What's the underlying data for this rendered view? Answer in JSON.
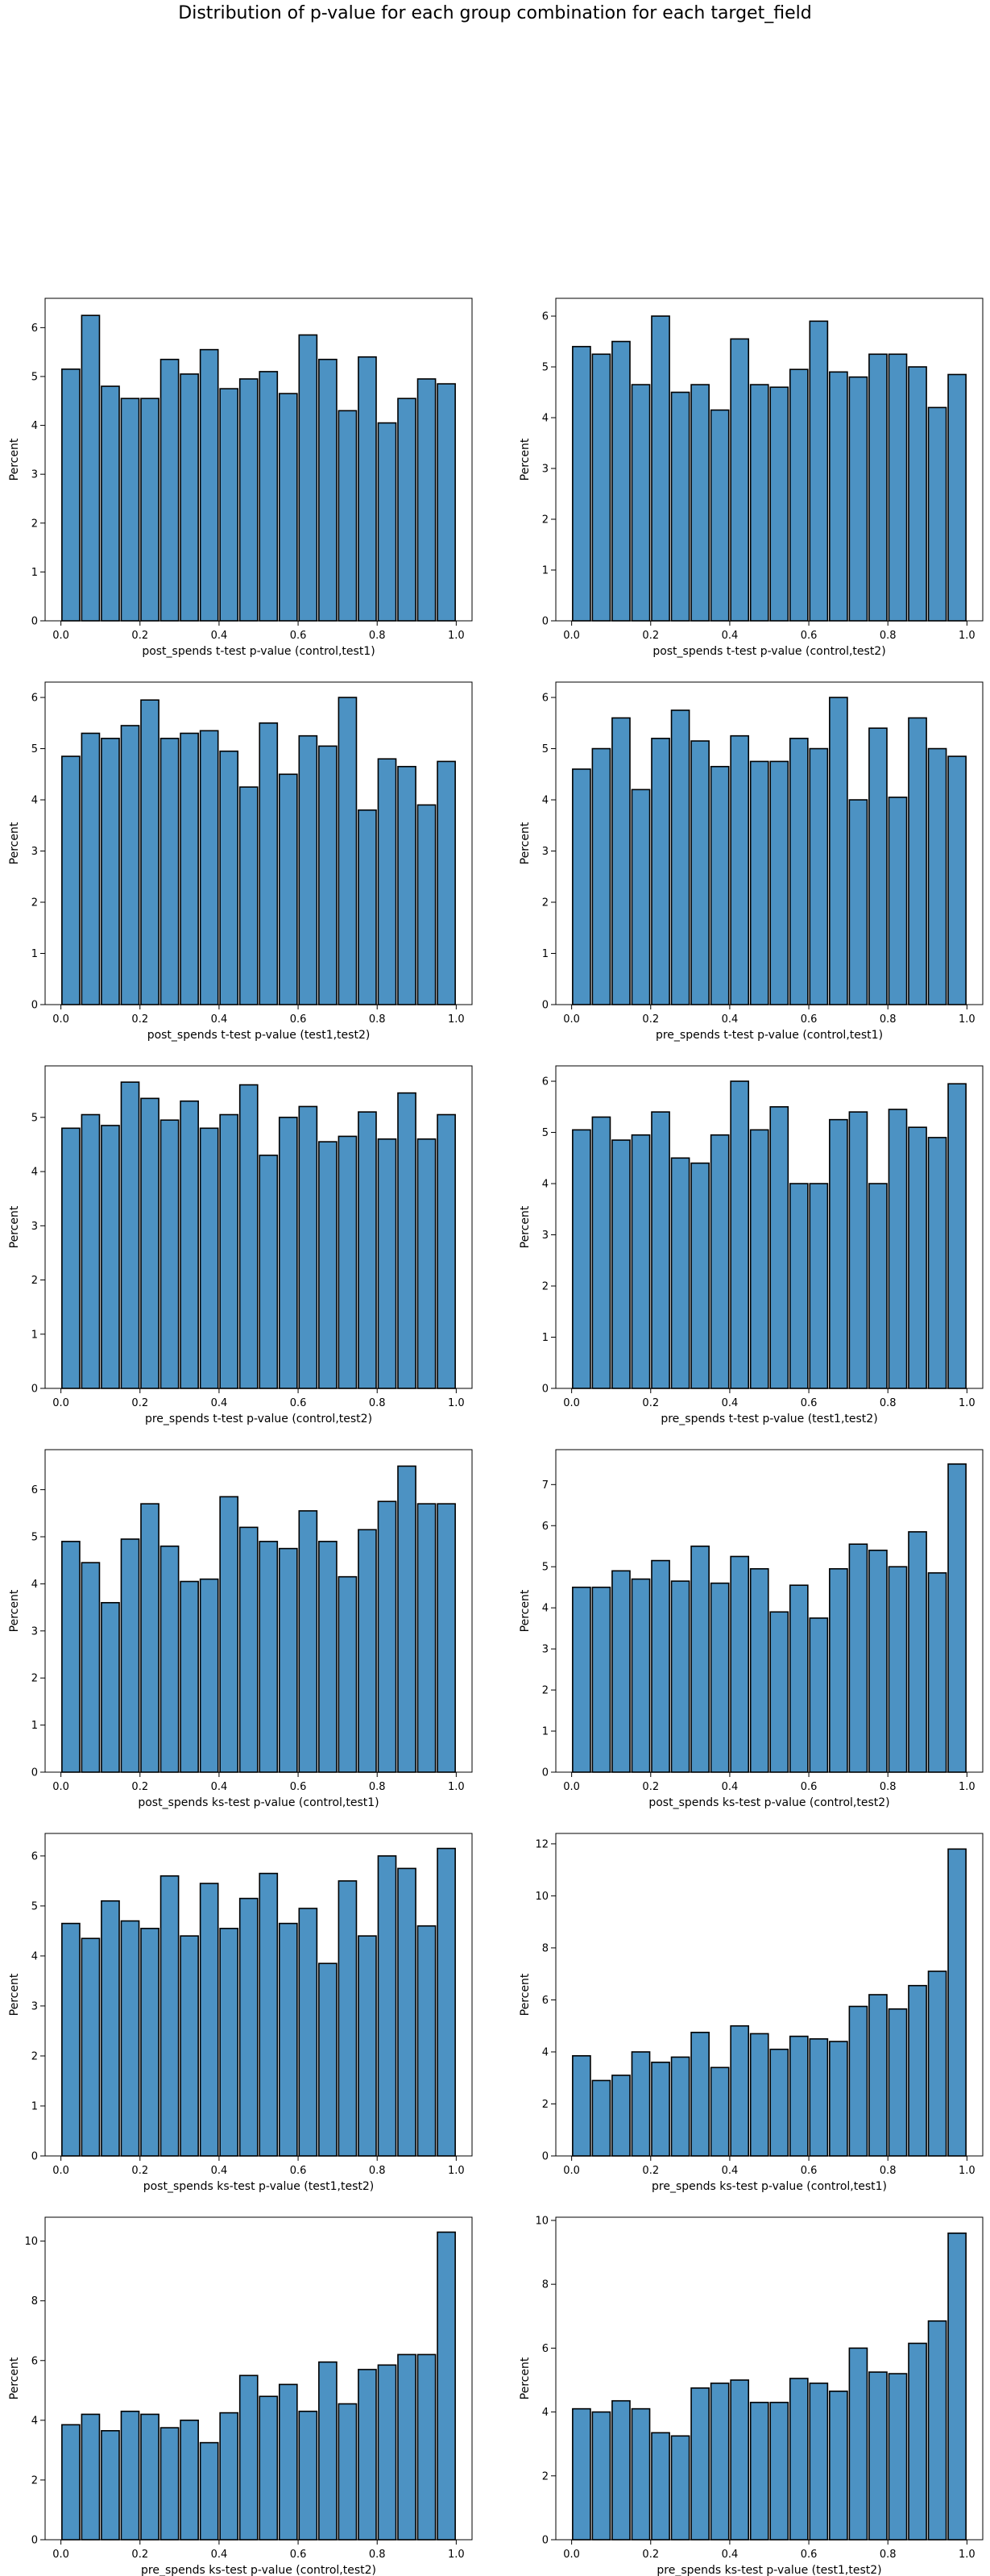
{
  "figure": {
    "title": "Distribution of p-value for each group combination for each target_field"
  },
  "colors": {
    "bar_fill": "#4c92c3",
    "bar_edge": "#000000"
  },
  "chart_data": [
    {
      "type": "bar",
      "xlabel": "post_spends t-test p-value (control,test1)",
      "ylabel": "Percent",
      "ylim": [
        0,
        6.6
      ],
      "xlim": [
        -0.04,
        1.04
      ],
      "xticks": [
        "0.0",
        "0.2",
        "0.4",
        "0.6",
        "0.8",
        "1.0"
      ],
      "yticks": [
        "0",
        "1",
        "2",
        "3",
        "4",
        "5",
        "6"
      ],
      "bins": 20,
      "values": [
        5.15,
        6.25,
        4.8,
        4.55,
        4.55,
        5.35,
        5.05,
        5.55,
        4.75,
        4.95,
        5.1,
        4.65,
        5.85,
        5.35,
        4.3,
        5.4,
        4.05,
        4.55,
        4.95,
        4.85
      ]
    },
    {
      "type": "bar",
      "xlabel": "post_spends t-test p-value (control,test2)",
      "ylabel": "Percent",
      "ylim": [
        0,
        6.35
      ],
      "xlim": [
        -0.04,
        1.04
      ],
      "xticks": [
        "0.0",
        "0.2",
        "0.4",
        "0.6",
        "0.8",
        "1.0"
      ],
      "yticks": [
        "0",
        "1",
        "2",
        "3",
        "4",
        "5",
        "6"
      ],
      "bins": 20,
      "values": [
        5.4,
        5.25,
        5.5,
        4.65,
        6.0,
        4.5,
        4.65,
        4.15,
        5.55,
        4.65,
        4.6,
        4.95,
        5.9,
        4.9,
        4.8,
        5.25,
        5.25,
        5.0,
        4.2,
        4.85
      ]
    },
    {
      "type": "bar",
      "xlabel": "post_spends t-test p-value (test1,test2)",
      "ylabel": "Percent",
      "ylim": [
        0,
        6.3
      ],
      "xlim": [
        -0.04,
        1.04
      ],
      "xticks": [
        "0.0",
        "0.2",
        "0.4",
        "0.6",
        "0.8",
        "1.0"
      ],
      "yticks": [
        "0",
        "1",
        "2",
        "3",
        "4",
        "5",
        "6"
      ],
      "bins": 20,
      "values": [
        4.85,
        5.3,
        5.2,
        5.45,
        5.95,
        5.2,
        5.3,
        5.35,
        4.95,
        4.25,
        5.5,
        4.5,
        5.25,
        5.05,
        6.0,
        3.8,
        4.8,
        4.65,
        3.9,
        4.75
      ]
    },
    {
      "type": "bar",
      "xlabel": "pre_spends t-test p-value (control,test1)",
      "ylabel": "Percent",
      "ylim": [
        0,
        6.3
      ],
      "xlim": [
        -0.04,
        1.04
      ],
      "xticks": [
        "0.0",
        "0.2",
        "0.4",
        "0.6",
        "0.8",
        "1.0"
      ],
      "yticks": [
        "0",
        "1",
        "2",
        "3",
        "4",
        "5",
        "6"
      ],
      "bins": 20,
      "values": [
        4.6,
        5.0,
        5.6,
        4.2,
        5.2,
        5.75,
        5.15,
        4.65,
        5.25,
        4.75,
        4.75,
        5.2,
        5.0,
        6.0,
        4.0,
        5.4,
        4.05,
        5.6,
        5.0,
        4.85
      ]
    },
    {
      "type": "bar",
      "xlabel": "pre_spends t-test p-value (control,test2)",
      "ylabel": "Percent",
      "ylim": [
        0,
        5.95
      ],
      "xlim": [
        -0.04,
        1.04
      ],
      "xticks": [
        "0.0",
        "0.2",
        "0.4",
        "0.6",
        "0.8",
        "1.0"
      ],
      "yticks": [
        "0",
        "1",
        "2",
        "3",
        "4",
        "5"
      ],
      "bins": 20,
      "values": [
        4.8,
        5.05,
        4.85,
        5.65,
        5.35,
        4.95,
        5.3,
        4.8,
        5.05,
        5.6,
        4.3,
        5.0,
        5.2,
        4.55,
        4.65,
        5.1,
        4.6,
        5.45,
        4.6,
        5.05
      ]
    },
    {
      "type": "bar",
      "xlabel": "pre_spends t-test p-value (test1,test2)",
      "ylabel": "Percent",
      "ylim": [
        0,
        6.3
      ],
      "xlim": [
        -0.04,
        1.04
      ],
      "xticks": [
        "0.0",
        "0.2",
        "0.4",
        "0.6",
        "0.8",
        "1.0"
      ],
      "yticks": [
        "0",
        "1",
        "2",
        "3",
        "4",
        "5",
        "6"
      ],
      "bins": 20,
      "values": [
        5.05,
        5.3,
        4.85,
        4.95,
        5.4,
        4.5,
        4.4,
        4.95,
        6.0,
        5.05,
        5.5,
        4.0,
        4.0,
        5.25,
        5.4,
        4.0,
        5.45,
        5.1,
        4.9,
        5.95
      ]
    },
    {
      "type": "bar",
      "xlabel": "post_spends ks-test p-value (control,test1)",
      "ylabel": "Percent",
      "ylim": [
        0,
        6.85
      ],
      "xlim": [
        -0.04,
        1.04
      ],
      "xticks": [
        "0.0",
        "0.2",
        "0.4",
        "0.6",
        "0.8",
        "1.0"
      ],
      "yticks": [
        "0",
        "1",
        "2",
        "3",
        "4",
        "5",
        "6"
      ],
      "bins": 20,
      "values": [
        4.9,
        4.45,
        3.6,
        4.95,
        5.7,
        4.8,
        4.05,
        4.1,
        5.85,
        5.2,
        4.9,
        4.75,
        5.55,
        4.9,
        4.15,
        5.15,
        5.75,
        6.5,
        5.7,
        5.7
      ]
    },
    {
      "type": "bar",
      "xlabel": "post_spends ks-test p-value (control,test2)",
      "ylabel": "Percent",
      "ylim": [
        0,
        7.85
      ],
      "xlim": [
        -0.04,
        1.04
      ],
      "xticks": [
        "0.0",
        "0.2",
        "0.4",
        "0.6",
        "0.8",
        "1.0"
      ],
      "yticks": [
        "0",
        "1",
        "2",
        "3",
        "4",
        "5",
        "6",
        "7"
      ],
      "bins": 20,
      "values": [
        4.5,
        4.5,
        4.9,
        4.7,
        5.15,
        4.65,
        5.5,
        4.6,
        5.25,
        4.95,
        3.9,
        4.55,
        3.75,
        4.95,
        5.55,
        5.4,
        5.0,
        5.85,
        4.85,
        7.5
      ]
    },
    {
      "type": "bar",
      "xlabel": "post_spends ks-test p-value (test1,test2)",
      "ylabel": "Percent",
      "ylim": [
        0,
        6.45
      ],
      "xlim": [
        -0.04,
        1.04
      ],
      "xticks": [
        "0.0",
        "0.2",
        "0.4",
        "0.6",
        "0.8",
        "1.0"
      ],
      "yticks": [
        "0",
        "1",
        "2",
        "3",
        "4",
        "5",
        "6"
      ],
      "bins": 20,
      "values": [
        4.65,
        4.35,
        5.1,
        4.7,
        4.55,
        5.6,
        4.4,
        5.45,
        4.55,
        5.15,
        5.65,
        4.65,
        4.95,
        3.85,
        5.5,
        4.4,
        6.0,
        5.75,
        4.6,
        6.15
      ]
    },
    {
      "type": "bar",
      "xlabel": "pre_spends ks-test p-value (control,test1)",
      "ylabel": "Percent",
      "ylim": [
        0,
        12.4
      ],
      "xlim": [
        -0.04,
        1.04
      ],
      "xticks": [
        "0.0",
        "0.2",
        "0.4",
        "0.6",
        "0.8",
        "1.0"
      ],
      "yticks": [
        "0",
        "2",
        "4",
        "6",
        "8",
        "10",
        "12"
      ],
      "bins": 20,
      "values": [
        3.85,
        2.9,
        3.1,
        4.0,
        3.6,
        3.8,
        4.75,
        3.4,
        5.0,
        4.7,
        4.1,
        4.6,
        4.5,
        4.4,
        5.75,
        6.2,
        5.65,
        6.55,
        7.1,
        11.8
      ]
    },
    {
      "type": "bar",
      "xlabel": "pre_spends ks-test p-value (control,test2)",
      "ylabel": "Percent",
      "ylim": [
        0,
        10.8
      ],
      "xlim": [
        -0.04,
        1.04
      ],
      "xticks": [
        "0.0",
        "0.2",
        "0.4",
        "0.6",
        "0.8",
        "1.0"
      ],
      "yticks": [
        "0",
        "2",
        "4",
        "6",
        "8",
        "10"
      ],
      "bins": 20,
      "values": [
        3.85,
        4.2,
        3.65,
        4.3,
        4.2,
        3.75,
        4.0,
        3.25,
        4.25,
        5.5,
        4.8,
        5.2,
        4.3,
        5.95,
        4.55,
        5.7,
        5.85,
        6.2,
        6.2,
        10.3
      ]
    },
    {
      "type": "bar",
      "xlabel": "pre_spends ks-test p-value (test1,test2)",
      "ylabel": "Percent",
      "ylim": [
        0,
        10.1
      ],
      "xlim": [
        -0.04,
        1.04
      ],
      "xticks": [
        "0.0",
        "0.2",
        "0.4",
        "0.6",
        "0.8",
        "1.0"
      ],
      "yticks": [
        "0",
        "2",
        "4",
        "6",
        "8",
        "10"
      ],
      "bins": 20,
      "values": [
        4.1,
        4.0,
        4.35,
        4.1,
        3.35,
        3.25,
        4.75,
        4.9,
        5.0,
        4.3,
        4.3,
        5.05,
        4.9,
        4.65,
        6.0,
        5.25,
        5.2,
        6.15,
        6.85,
        9.6
      ]
    }
  ]
}
